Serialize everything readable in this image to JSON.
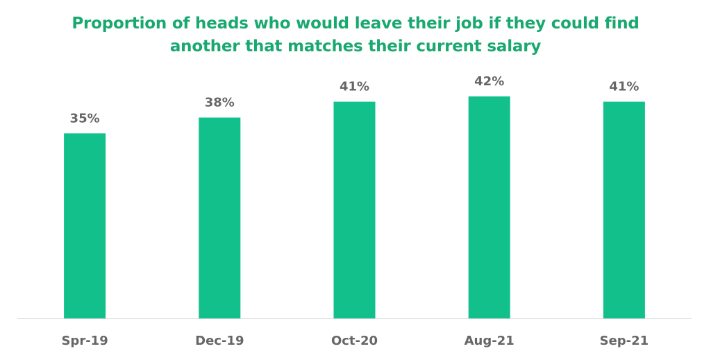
{
  "chart_data": {
    "type": "bar",
    "title_lines": [
      "Proportion of heads who would leave their job if they could find",
      "another that matches their current salary"
    ],
    "categories": [
      "Spr-19",
      "Dec-19",
      "Oct-20",
      "Aug-21",
      "Sep-21"
    ],
    "values": [
      35,
      38,
      41,
      42,
      41
    ],
    "data_labels": [
      "35%",
      "38%",
      "41%",
      "42%",
      "41%"
    ],
    "value_unit": "%",
    "ylim": [
      0,
      42
    ],
    "grid": false,
    "legend": "none",
    "bar_color": "#12c08c",
    "title_color": "#19a870",
    "label_color": "#666666",
    "axis_color": "#d9d9d9"
  }
}
